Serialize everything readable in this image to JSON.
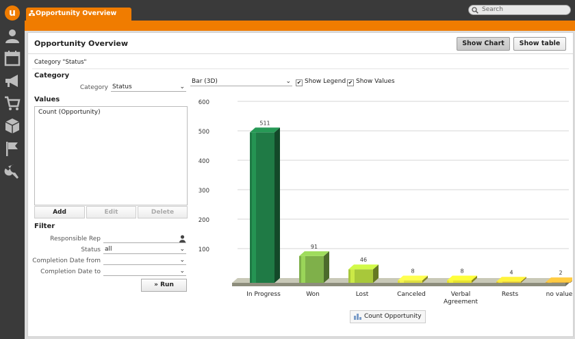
{
  "app": {
    "logo_letter": "u"
  },
  "sidebar": {
    "icons": [
      "user-icon",
      "calendar-icon",
      "megaphone-icon",
      "cart-icon",
      "box-icon",
      "flag-icon",
      "wrench-icon"
    ]
  },
  "tab": {
    "label": "Opportunity Overview"
  },
  "search": {
    "placeholder": "Search"
  },
  "page": {
    "title": "Opportunity Overview",
    "show_chart_label": "Show Chart",
    "show_table_label": "Show table",
    "subtitle": "Category \"Status\""
  },
  "category": {
    "heading": "Category",
    "label": "Category",
    "value": "Status"
  },
  "chart_options": {
    "type_value": "Bar (3D)",
    "show_legend_label": "Show Legend",
    "show_values_label": "Show Values",
    "show_legend": true,
    "show_values": true
  },
  "values": {
    "heading": "Values",
    "items": [
      "Count (Opportunity)"
    ],
    "add_label": "Add",
    "edit_label": "Edit",
    "delete_label": "Delete"
  },
  "filter": {
    "heading": "Filter",
    "responsible_rep_label": "Responsible Rep",
    "status_label": "Status",
    "status_value": "all",
    "completion_from_label": "Completion Date from",
    "completion_to_label": "Completion Date to",
    "run_label": "Run"
  },
  "chart_data": {
    "type": "bar",
    "categories": [
      "In Progress",
      "Won",
      "Lost",
      "Canceled",
      "Verbal Agreement",
      "Rests",
      "no value"
    ],
    "series": [
      {
        "name": "Count Opportunity",
        "values": [
          511,
          91,
          46,
          8,
          8,
          4,
          2
        ]
      }
    ],
    "ylim": [
      0,
      600
    ],
    "yticks": [
      100,
      200,
      300,
      400,
      500,
      600
    ],
    "grid": true,
    "legend": "bottom-center",
    "colors": {
      "In Progress": "#1f7a45",
      "Won": "#7fb04a",
      "Lost": "#a8c83a",
      "Canceled": "#dede40",
      "Verbal Agreement": "#e6e12e",
      "Rests": "#e0c230",
      "no value": "#d9a235"
    }
  }
}
